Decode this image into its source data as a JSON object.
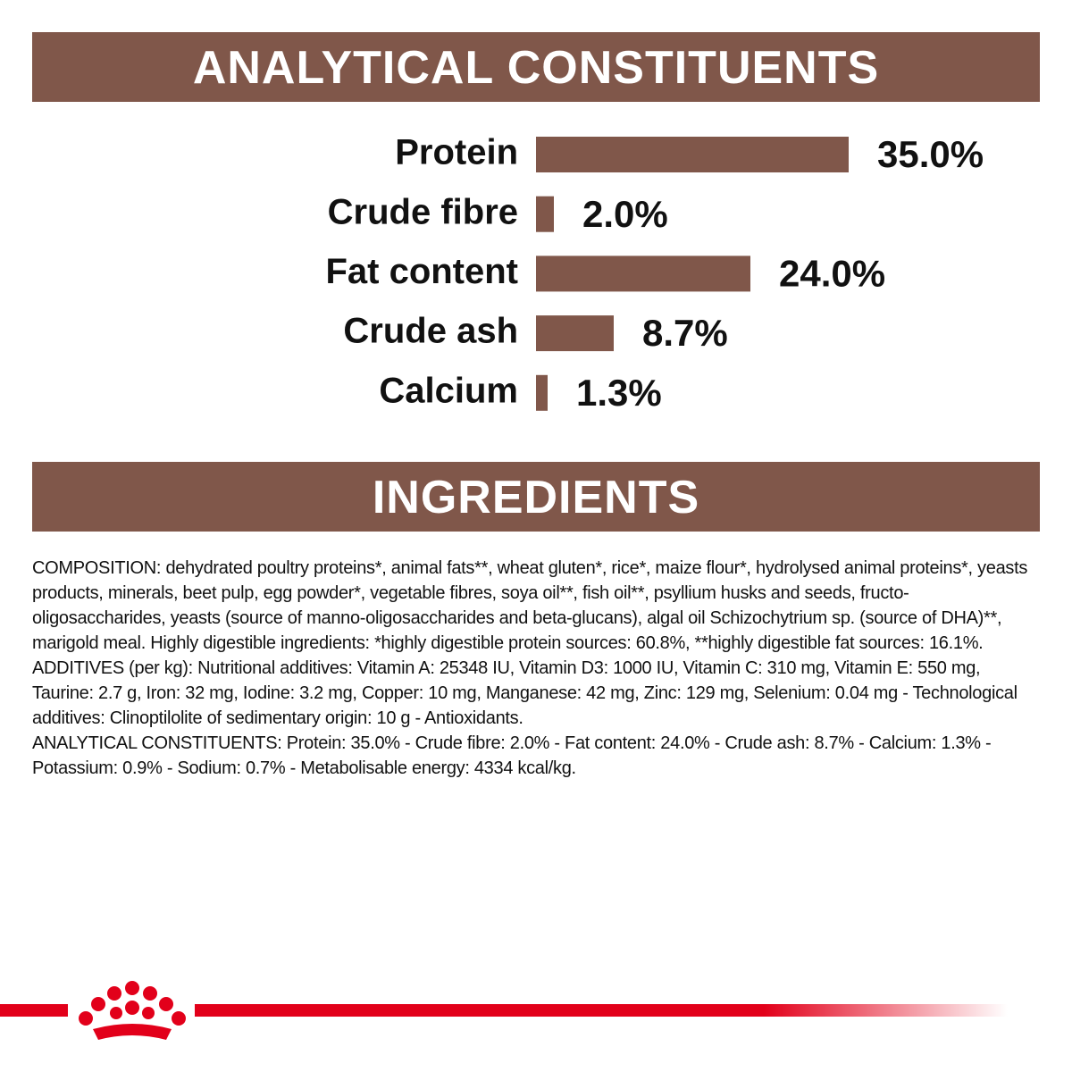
{
  "chart_data": {
    "type": "bar",
    "orientation": "horizontal",
    "title": "ANALYTICAL CONSTITUENTS",
    "categories": [
      "Protein",
      "Crude fibre",
      "Fat content",
      "Crude ash",
      "Calcium"
    ],
    "values": [
      35.0,
      2.0,
      24.0,
      8.7,
      1.3
    ],
    "value_labels": [
      "35.0%",
      "2.0%",
      "24.0%",
      "8.7%",
      "1.3%"
    ],
    "color": "#80574a"
  },
  "ingredients": {
    "title": "INGREDIENTS",
    "paragraphs": [
      "COMPOSITION: dehydrated poultry proteins*, animal fats**, wheat gluten*, rice*, maize flour*, hydrolysed animal proteins*, yeasts products, minerals, beet pulp, egg powder*, vegetable fibres, soya oil**, fish oil**, psyllium husks and seeds, fructo-oligosaccharides, yeasts (source of manno-oligosaccharides and beta-glucans), algal oil Schizochytrium sp. (source of DHA)**, marigold meal. Highly digestible ingredients: *highly digestible protein sources: 60.8%, **highly digestible fat sources: 16.1%.",
      "ADDITIVES (per kg): Nutritional additives: Vitamin A: 25348 IU, Vitamin D3: 1000 IU, Vitamin C: 310 mg, Vitamin E: 550 mg, Taurine: 2.7 g, Iron: 32 mg, Iodine: 3.2 mg, Copper: 10 mg, Manganese: 42 mg, Zinc: 129 mg, Selenium: 0.04 mg - Technological additives: Clinoptilolite of sedimentary origin: 10 g - Antioxidants.",
      "ANALYTICAL CONSTITUENTS: Protein: 35.0% - Crude fibre: 2.0% - Fat content: 24.0% - Crude ash: 8.7% - Calcium: 1.3% - Potassium: 0.9% - Sodium: 0.7% - Metabolisable energy: 4334 kcal/kg."
    ]
  }
}
